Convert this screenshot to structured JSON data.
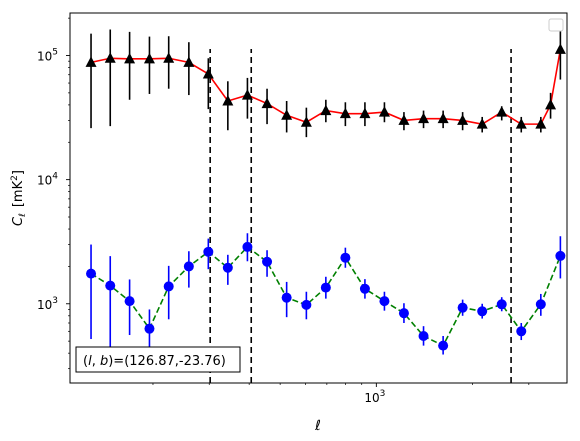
{
  "chart_data": {
    "type": "scatter",
    "xlabel": "ℓ",
    "ylabel": "C",
    "ylabel_sub": "ℓ",
    "ylabel_units": "[mK",
    "ylabel_units_sup": "2",
    "ylabel_units_close": "]",
    "xscale": "log",
    "yscale": "log",
    "xlim": [
      110,
      3950
    ],
    "ylim": [
      230,
      220000
    ],
    "x_tick_labels": [
      {
        "value": 1000,
        "base": "10",
        "exp": "3"
      }
    ],
    "y_tick_labels": [
      {
        "value": 1000,
        "base": "10",
        "exp": "3"
      },
      {
        "value": 10000,
        "base": "10",
        "exp": "4"
      },
      {
        "value": 100000,
        "base": "10",
        "exp": "5"
      }
    ],
    "grid": false,
    "legend": {
      "placement": "top-right",
      "entries": []
    },
    "annotation": "(l, b)=(126.87,-23.76)",
    "annotation_parts": {
      "open": "(",
      "l": "l",
      "sep": ", ",
      "b": "b",
      "rest": ")=(126.87,-23.76)"
    },
    "vertical_lines": [
      302,
      406,
      2640
    ],
    "series": [
      {
        "marker": "triangle",
        "marker_color": "#000000",
        "line_color": "#ff0000",
        "line_style": "solid",
        "error_color": "#000000",
        "points": [
          {
            "x": 128,
            "y": 88000,
            "lo": 26000,
            "hi": 150000
          },
          {
            "x": 147,
            "y": 95000,
            "lo": 27000,
            "hi": 162000
          },
          {
            "x": 169,
            "y": 94000,
            "lo": 44000,
            "hi": 155000
          },
          {
            "x": 195,
            "y": 94000,
            "lo": 49000,
            "hi": 142000
          },
          {
            "x": 224,
            "y": 95000,
            "lo": 54000,
            "hi": 143000
          },
          {
            "x": 259,
            "y": 88000,
            "lo": 48000,
            "hi": 128000
          },
          {
            "x": 298,
            "y": 71000,
            "lo": 37000,
            "hi": 95000
          },
          {
            "x": 343,
            "y": 43000,
            "lo": 25000,
            "hi": 62000
          },
          {
            "x": 395,
            "y": 48000,
            "lo": 31000,
            "hi": 66000
          },
          {
            "x": 455,
            "y": 41000,
            "lo": 28000,
            "hi": 54000
          },
          {
            "x": 524,
            "y": 33000,
            "lo": 24000,
            "hi": 43000
          },
          {
            "x": 604,
            "y": 29000,
            "lo": 22000,
            "hi": 38000
          },
          {
            "x": 695,
            "y": 36000,
            "lo": 29000,
            "hi": 44000
          },
          {
            "x": 800,
            "y": 34000,
            "lo": 27000,
            "hi": 42000
          },
          {
            "x": 921,
            "y": 34000,
            "lo": 27000,
            "hi": 42000
          },
          {
            "x": 1060,
            "y": 35000,
            "lo": 29000,
            "hi": 42000
          },
          {
            "x": 1220,
            "y": 30000,
            "lo": 25000,
            "hi": 35000
          },
          {
            "x": 1405,
            "y": 31000,
            "lo": 26000,
            "hi": 36000
          },
          {
            "x": 1618,
            "y": 31000,
            "lo": 26000,
            "hi": 36000
          },
          {
            "x": 1862,
            "y": 30000,
            "lo": 25000,
            "hi": 35000
          },
          {
            "x": 2144,
            "y": 28000,
            "lo": 24000,
            "hi": 32000
          },
          {
            "x": 2468,
            "y": 35000,
            "lo": 30000,
            "hi": 39000
          },
          {
            "x": 2841,
            "y": 28000,
            "lo": 24000,
            "hi": 32000
          },
          {
            "x": 3271,
            "y": 28000,
            "lo": 24000,
            "hi": 32000
          },
          {
            "x": 3509,
            "y": 40000,
            "lo": 31000,
            "hi": 50000
          },
          {
            "x": 3766,
            "y": 112000,
            "lo": 64000,
            "hi": 160000
          }
        ]
      },
      {
        "marker": "circle",
        "marker_color": "#0000ff",
        "line_color": "#008000",
        "line_style": "dashed",
        "error_color": "#0000ff",
        "points": [
          {
            "x": 128,
            "y": 1750,
            "lo": 520,
            "hi": 3000
          },
          {
            "x": 147,
            "y": 1400,
            "lo": 390,
            "hi": 2420
          },
          {
            "x": 169,
            "y": 1050,
            "lo": 560,
            "hi": 1570
          },
          {
            "x": 195,
            "y": 630,
            "lo": 390,
            "hi": 900
          },
          {
            "x": 224,
            "y": 1380,
            "lo": 750,
            "hi": 2020
          },
          {
            "x": 259,
            "y": 2000,
            "lo": 1350,
            "hi": 2650
          },
          {
            "x": 298,
            "y": 2620,
            "lo": 1900,
            "hi": 3350
          },
          {
            "x": 343,
            "y": 1950,
            "lo": 1420,
            "hi": 2480
          },
          {
            "x": 395,
            "y": 2870,
            "lo": 2200,
            "hi": 3700
          },
          {
            "x": 455,
            "y": 2180,
            "lo": 1650,
            "hi": 2700
          },
          {
            "x": 524,
            "y": 1120,
            "lo": 780,
            "hi": 1500
          },
          {
            "x": 604,
            "y": 980,
            "lo": 750,
            "hi": 1250
          },
          {
            "x": 695,
            "y": 1350,
            "lo": 1100,
            "hi": 1650
          },
          {
            "x": 800,
            "y": 2350,
            "lo": 1950,
            "hi": 2830
          },
          {
            "x": 921,
            "y": 1320,
            "lo": 1100,
            "hi": 1580
          },
          {
            "x": 1060,
            "y": 1050,
            "lo": 880,
            "hi": 1250
          },
          {
            "x": 1220,
            "y": 840,
            "lo": 700,
            "hi": 1010
          },
          {
            "x": 1405,
            "y": 550,
            "lo": 460,
            "hi": 660
          },
          {
            "x": 1618,
            "y": 460,
            "lo": 390,
            "hi": 550
          },
          {
            "x": 1862,
            "y": 930,
            "lo": 800,
            "hi": 1080
          },
          {
            "x": 2144,
            "y": 870,
            "lo": 760,
            "hi": 1000
          },
          {
            "x": 2468,
            "y": 990,
            "lo": 870,
            "hi": 1130
          },
          {
            "x": 2841,
            "y": 600,
            "lo": 510,
            "hi": 700
          },
          {
            "x": 3271,
            "y": 990,
            "lo": 800,
            "hi": 1200
          },
          {
            "x": 3766,
            "y": 2430,
            "lo": 1600,
            "hi": 3500
          }
        ]
      }
    ]
  }
}
